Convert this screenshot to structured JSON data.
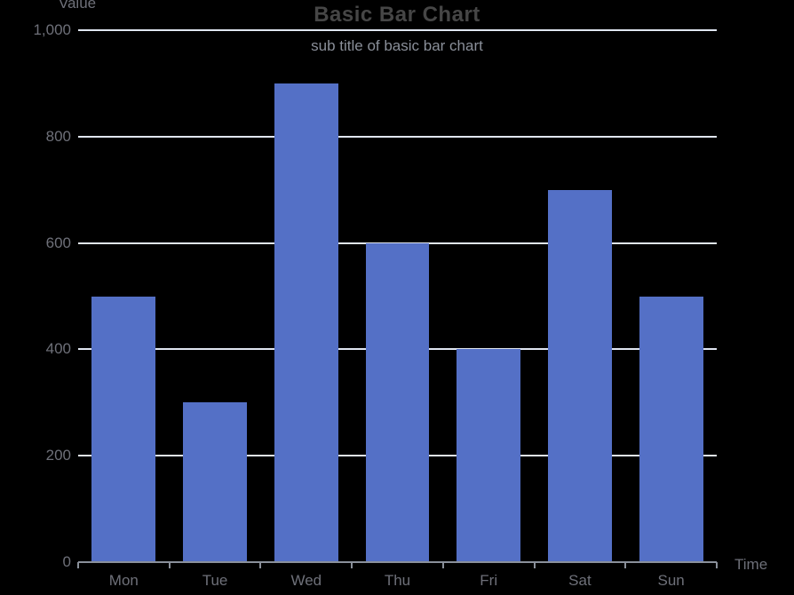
{
  "chart_data": {
    "type": "bar",
    "title": "Basic Bar Chart",
    "subtitle": "sub title of basic bar chart",
    "categories": [
      "Mon",
      "Tue",
      "Wed",
      "Thu",
      "Fri",
      "Sat",
      "Sun"
    ],
    "values": [
      500,
      300,
      900,
      600,
      400,
      700,
      500
    ],
    "xlabel": "Time",
    "ylabel": "Value",
    "ylim": [
      0,
      1000
    ],
    "y_ticks": [
      0,
      200,
      400,
      600,
      800,
      1000
    ],
    "y_tick_labels": [
      "0",
      "200",
      "400",
      "600",
      "800",
      "1,000"
    ],
    "grid": true,
    "legend_position": "none",
    "bar_color": "#5470C6"
  },
  "colors": {
    "background": "#000000",
    "bar": "#5470C6",
    "gridline": "#E0E6F1",
    "axis_line": "#8A909A",
    "axis_label": "#6E7079",
    "title": "#464646",
    "subtitle": "#8A8F99"
  }
}
